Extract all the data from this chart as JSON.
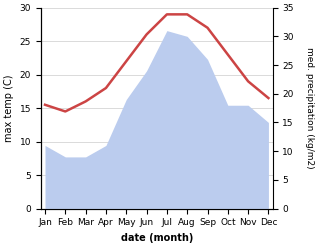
{
  "months": [
    "Jan",
    "Feb",
    "Mar",
    "Apr",
    "May",
    "Jun",
    "Jul",
    "Aug",
    "Sep",
    "Oct",
    "Nov",
    "Dec"
  ],
  "temperature": [
    15.5,
    14.5,
    16.0,
    18.0,
    22.0,
    26.0,
    29.0,
    29.0,
    27.0,
    23.0,
    19.0,
    16.5
  ],
  "precipitation": [
    11,
    9,
    9,
    11,
    19,
    24,
    31,
    30,
    26,
    18,
    18,
    15
  ],
  "temp_color": "#cc4444",
  "precip_color": "#bbccee",
  "background_color": "#ffffff",
  "ylabel_left": "max temp (C)",
  "ylabel_right": "med. precipitation (kg/m2)",
  "xlabel": "date (month)",
  "ylim_left": [
    0,
    30
  ],
  "ylim_right": [
    0,
    35
  ],
  "label_fontsize": 7,
  "tick_fontsize": 6.5
}
